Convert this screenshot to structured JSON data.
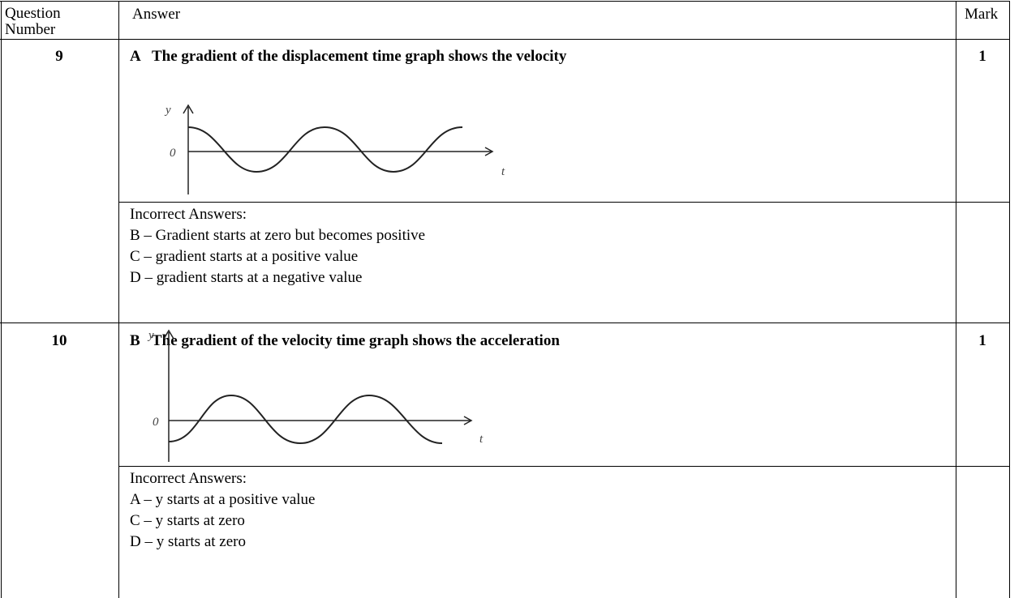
{
  "header": {
    "question": "Question Number",
    "answer": "Answer",
    "mark": "Mark"
  },
  "rows": [
    {
      "question": "9",
      "answer_letter": "A",
      "answer": "The gradient of the displacement time graph shows the velocity",
      "mark": "1",
      "graph_labels": {
        "y": "y",
        "origin": "0",
        "t": "t"
      },
      "incorrect_heading": "Incorrect Answers:",
      "incorrect": [
        "B – Gradient starts at zero but becomes positive",
        "C – gradient starts at a positive value",
        "D – gradient starts at a negative value"
      ]
    },
    {
      "question": "10",
      "answer_letter": "B",
      "answer": "The gradient of the velocity time graph shows the acceleration",
      "mark": "1",
      "graph_labels": {
        "y": "y",
        "origin": "0",
        "t": "t"
      },
      "incorrect_heading": "Incorrect Answers:",
      "incorrect": [
        "A – y starts at a positive value",
        "C – y starts at zero",
        "D – y starts at zero"
      ]
    }
  ]
}
